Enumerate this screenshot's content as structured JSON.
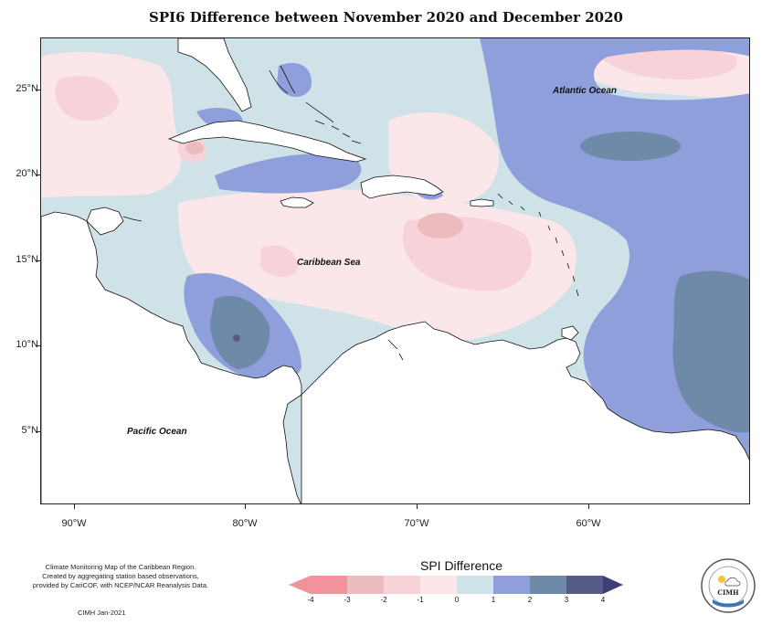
{
  "title": "SPI6 Difference between November 2020 and December 2020",
  "map_labels": {
    "atlantic": "Atlantic Ocean",
    "caribbean": "Caribbean Sea",
    "pacific": "Pacific Ocean"
  },
  "lat_labels": [
    "25°N",
    "20°N",
    "15°N",
    "10°N",
    "5°N"
  ],
  "lon_labels": [
    "90°W",
    "80°W",
    "70°W",
    "60°W"
  ],
  "legend": {
    "title": "SPI Difference",
    "ticks": [
      "-4",
      "-3",
      "-2",
      "-1",
      "0",
      "1",
      "2",
      "3",
      "4"
    ],
    "colors": [
      "#f2929a",
      "#ebbbc0",
      "#f7d2d8",
      "#fbe6e9",
      "#cfe2e8",
      "#8f9fdb",
      "#6f8aa9",
      "#565c86"
    ]
  },
  "footnote": {
    "line1": "Climate Monitoring Map of the Caribbean Region.",
    "line2": "Created by aggregating station based observations,",
    "line3": "provided by CariCOF, with NCEP/NCAR Reanalysis Data."
  },
  "credit": "CIMH  Jan-2021",
  "logo": {
    "text": "CIMH"
  }
}
